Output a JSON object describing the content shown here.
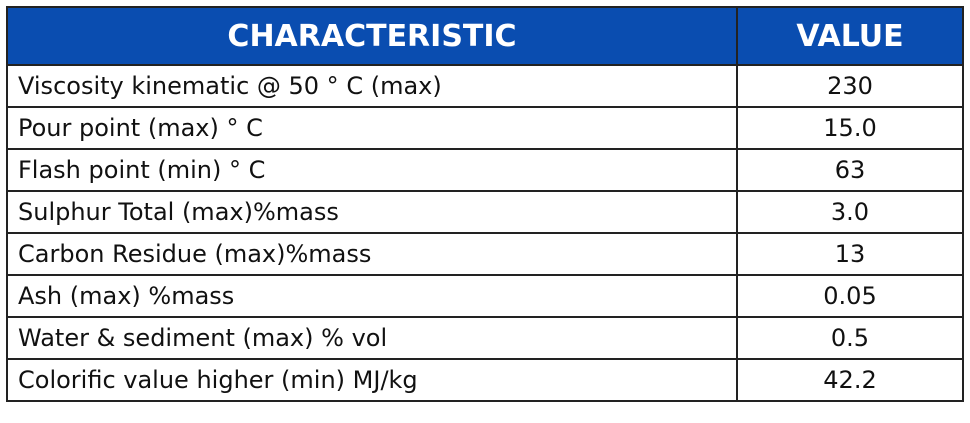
{
  "table": {
    "header": [
      "CHARACTERISTIC",
      "VALUE"
    ],
    "rows": [
      [
        "Viscosity kinematic @ 50 ° C (max)",
        "230"
      ],
      [
        "Pour point (max) ° C",
        "15.0"
      ],
      [
        "Flash point (min) ° C",
        "63"
      ],
      [
        "Sulphur Total (max)%mass",
        "3.0"
      ],
      [
        "Carbon Residue (max)%mass",
        "13"
      ],
      [
        "Ash (max) %mass",
        "0.05"
      ],
      [
        "Water & sediment (max) % vol",
        "0.5"
      ],
      [
        "Colorific value higher (min) MJ/kg",
        "42.2"
      ]
    ]
  }
}
